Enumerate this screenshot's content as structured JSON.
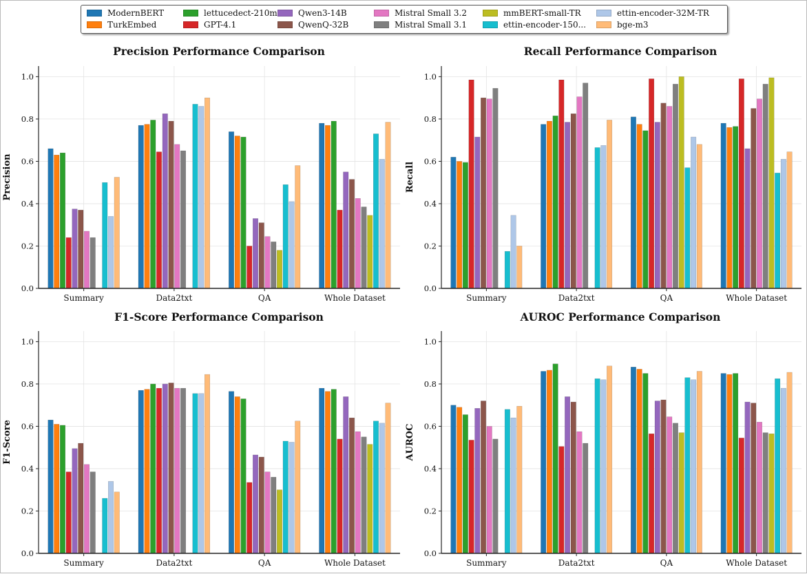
{
  "legend": {
    "placement": "top-center"
  },
  "colors": {
    "ModernBERT": "#1f77b4",
    "TurkEmbed": "#ff7f0e",
    "lettucedect-210m...": "#2ca02c",
    "GPT-4.1": "#d62728",
    "Qwen3-14B": "#9467bd",
    "QwenQ-32B": "#8c564b",
    "Mistral Small 3.2": "#e377c2",
    "Mistral Small 3.1": "#7f7f7f",
    "mmBERT-small-TR": "#bcbd22",
    "ettin-encoder-150...": "#17becf",
    "ettin-encoder-32M-TR": "#aec7e8",
    "bge-m3": "#ffbb78"
  },
  "chart_data": [
    {
      "type": "bar",
      "title": "Precision Performance Comparison",
      "ylabel": "Precision",
      "xlabel": "",
      "ylim": [
        0,
        1.05
      ],
      "yticks": [
        "0.0",
        "0.2",
        "0.4",
        "0.6",
        "0.8",
        "1.0"
      ],
      "grid": true,
      "categories": [
        "Summary",
        "Data2txt",
        "QA",
        "Whole Dataset"
      ],
      "series": [
        {
          "name": "ModernBERT",
          "values": [
            0.66,
            0.77,
            0.74,
            0.78
          ]
        },
        {
          "name": "TurkEmbed",
          "values": [
            0.63,
            0.775,
            0.72,
            0.77
          ]
        },
        {
          "name": "lettucedect-210m...",
          "values": [
            0.64,
            0.795,
            0.715,
            0.79
          ]
        },
        {
          "name": "GPT-4.1",
          "values": [
            0.24,
            0.645,
            0.2,
            0.37
          ]
        },
        {
          "name": "Qwen3-14B",
          "values": [
            0.375,
            0.825,
            0.33,
            0.55
          ]
        },
        {
          "name": "QwenQ-32B",
          "values": [
            0.37,
            0.79,
            0.31,
            0.515
          ]
        },
        {
          "name": "Mistral Small 3.2",
          "values": [
            0.27,
            0.68,
            0.245,
            0.425
          ]
        },
        {
          "name": "Mistral Small 3.1",
          "values": [
            0.24,
            0.65,
            0.22,
            0.385
          ]
        },
        {
          "name": "mmBERT-small-TR",
          "values": [
            0,
            0,
            0.18,
            0.345
          ]
        },
        {
          "name": "ettin-encoder-150...",
          "values": [
            0.5,
            0.87,
            0.49,
            0.73
          ]
        },
        {
          "name": "ettin-encoder-32M-TR",
          "values": [
            0.34,
            0.86,
            0.41,
            0.61
          ]
        },
        {
          "name": "bge-m3",
          "values": [
            0.525,
            0.9,
            0.58,
            0.785
          ]
        }
      ]
    },
    {
      "type": "bar",
      "title": "Recall Performance Comparison",
      "ylabel": "Recall",
      "xlabel": "",
      "ylim": [
        0,
        1.05
      ],
      "yticks": [
        "0.0",
        "0.2",
        "0.4",
        "0.6",
        "0.8",
        "1.0"
      ],
      "grid": true,
      "categories": [
        "Summary",
        "Data2txt",
        "QA",
        "Whole Dataset"
      ],
      "series": [
        {
          "name": "ModernBERT",
          "values": [
            0.62,
            0.775,
            0.81,
            0.78
          ]
        },
        {
          "name": "TurkEmbed",
          "values": [
            0.6,
            0.79,
            0.775,
            0.76
          ]
        },
        {
          "name": "lettucedect-210m...",
          "values": [
            0.595,
            0.815,
            0.745,
            0.765
          ]
        },
        {
          "name": "GPT-4.1",
          "values": [
            0.985,
            0.985,
            0.99,
            0.99
          ]
        },
        {
          "name": "Qwen3-14B",
          "values": [
            0.715,
            0.785,
            0.785,
            0.66
          ]
        },
        {
          "name": "QwenQ-32B",
          "values": [
            0.9,
            0.825,
            0.875,
            0.85
          ]
        },
        {
          "name": "Mistral Small 3.2",
          "values": [
            0.895,
            0.905,
            0.86,
            0.895
          ]
        },
        {
          "name": "Mistral Small 3.1",
          "values": [
            0.945,
            0.97,
            0.965,
            0.965
          ]
        },
        {
          "name": "mmBERT-small-TR",
          "values": [
            0,
            0,
            1.0,
            0.995
          ]
        },
        {
          "name": "ettin-encoder-150...",
          "values": [
            0.175,
            0.665,
            0.57,
            0.545
          ]
        },
        {
          "name": "ettin-encoder-32M-TR",
          "values": [
            0.345,
            0.675,
            0.715,
            0.61
          ]
        },
        {
          "name": "bge-m3",
          "values": [
            0.2,
            0.795,
            0.68,
            0.645
          ]
        }
      ]
    },
    {
      "type": "bar",
      "title": "F1-Score Performance Comparison",
      "ylabel": "F1-Score",
      "xlabel": "",
      "ylim": [
        0,
        1.05
      ],
      "yticks": [
        "0.0",
        "0.2",
        "0.4",
        "0.6",
        "0.8",
        "1.0"
      ],
      "grid": true,
      "categories": [
        "Summary",
        "Data2txt",
        "QA",
        "Whole Dataset"
      ],
      "series": [
        {
          "name": "ModernBERT",
          "values": [
            0.63,
            0.77,
            0.765,
            0.78
          ]
        },
        {
          "name": "TurkEmbed",
          "values": [
            0.61,
            0.775,
            0.74,
            0.765
          ]
        },
        {
          "name": "lettucedect-210m...",
          "values": [
            0.605,
            0.8,
            0.73,
            0.775
          ]
        },
        {
          "name": "GPT-4.1",
          "values": [
            0.385,
            0.78,
            0.335,
            0.54
          ]
        },
        {
          "name": "Qwen3-14B",
          "values": [
            0.495,
            0.8,
            0.465,
            0.74
          ]
        },
        {
          "name": "QwenQ-32B",
          "values": [
            0.52,
            0.805,
            0.455,
            0.64
          ]
        },
        {
          "name": "Mistral Small 3.2",
          "values": [
            0.42,
            0.78,
            0.385,
            0.575
          ]
        },
        {
          "name": "Mistral Small 3.1",
          "values": [
            0.385,
            0.78,
            0.36,
            0.55
          ]
        },
        {
          "name": "mmBERT-small-TR",
          "values": [
            0,
            0,
            0.3,
            0.515
          ]
        },
        {
          "name": "ettin-encoder-150...",
          "values": [
            0.26,
            0.755,
            0.53,
            0.625
          ]
        },
        {
          "name": "ettin-encoder-32M-TR",
          "values": [
            0.34,
            0.755,
            0.525,
            0.615
          ]
        },
        {
          "name": "bge-m3",
          "values": [
            0.29,
            0.845,
            0.625,
            0.71
          ]
        }
      ]
    },
    {
      "type": "bar",
      "title": "AUROC Performance Comparison",
      "ylabel": "AUROC",
      "xlabel": "",
      "ylim": [
        0,
        1.05
      ],
      "yticks": [
        "0.0",
        "0.2",
        "0.4",
        "0.6",
        "0.8",
        "1.0"
      ],
      "grid": true,
      "categories": [
        "Summary",
        "Data2txt",
        "QA",
        "Whole Dataset"
      ],
      "series": [
        {
          "name": "ModernBERT",
          "values": [
            0.7,
            0.86,
            0.88,
            0.85
          ]
        },
        {
          "name": "TurkEmbed",
          "values": [
            0.69,
            0.865,
            0.87,
            0.845
          ]
        },
        {
          "name": "lettucedect-210m...",
          "values": [
            0.655,
            0.895,
            0.85,
            0.85
          ]
        },
        {
          "name": "GPT-4.1",
          "values": [
            0.535,
            0.505,
            0.565,
            0.545
          ]
        },
        {
          "name": "Qwen3-14B",
          "values": [
            0.685,
            0.74,
            0.72,
            0.715
          ]
        },
        {
          "name": "QwenQ-32B",
          "values": [
            0.72,
            0.715,
            0.725,
            0.71
          ]
        },
        {
          "name": "Mistral Small 3.2",
          "values": [
            0.6,
            0.575,
            0.645,
            0.62
          ]
        },
        {
          "name": "Mistral Small 3.1",
          "values": [
            0.54,
            0.52,
            0.615,
            0.57
          ]
        },
        {
          "name": "mmBERT-small-TR",
          "values": [
            0,
            0,
            0.57,
            0.565
          ]
        },
        {
          "name": "ettin-encoder-150...",
          "values": [
            0.68,
            0.825,
            0.83,
            0.825
          ]
        },
        {
          "name": "ettin-encoder-32M-TR",
          "values": [
            0.64,
            0.82,
            0.82,
            0.78
          ]
        },
        {
          "name": "bge-m3",
          "values": [
            0.695,
            0.885,
            0.86,
            0.855
          ]
        }
      ]
    }
  ]
}
